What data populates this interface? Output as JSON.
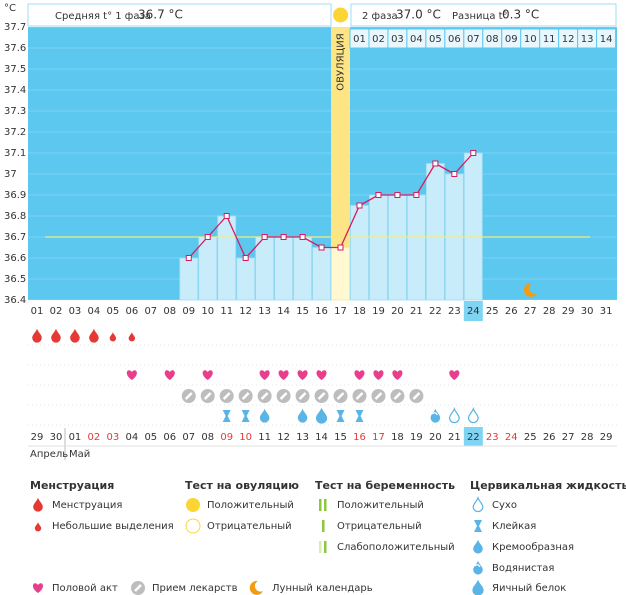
{
  "unit": "°C",
  "header": {
    "phase1_label": "Средняя t° 1 фаза",
    "phase1_value": "36.7 °C",
    "phase2_label": "2 фаза",
    "phase2_value": "37.0 °C",
    "diff_label": "Разница t°",
    "diff_value": "0.3 °C"
  },
  "chart_data": {
    "type": "line",
    "categories": [
      "01",
      "02",
      "03",
      "04",
      "05",
      "06",
      "07",
      "08",
      "09",
      "10",
      "11",
      "12",
      "13",
      "14",
      "15",
      "16",
      "17",
      "18",
      "19",
      "20",
      "21",
      "22",
      "23",
      "24",
      "25",
      "26",
      "27",
      "28",
      "29",
      "30",
      "31"
    ],
    "values": [
      null,
      null,
      null,
      null,
      null,
      null,
      null,
      null,
      36.6,
      36.7,
      36.8,
      36.6,
      36.7,
      36.7,
      36.7,
      36.65,
      36.65,
      36.85,
      36.9,
      36.9,
      36.9,
      37.05,
      37.0,
      37.1,
      null,
      null,
      null,
      null,
      null,
      null,
      null
    ],
    "color": "#d81b60",
    "ylim": [
      36.4,
      37.7
    ],
    "yticks": [
      36.4,
      36.5,
      36.6,
      36.7,
      36.8,
      36.9,
      37,
      37.1,
      37.2,
      37.3,
      37.4,
      37.5,
      37.6,
      37.7
    ],
    "coverline": 36.7,
    "ovulation_day": 17,
    "ovulation_label": "ОВУЛЯЦИЯ",
    "phase2_days": [
      "01",
      "02",
      "03",
      "04",
      "05",
      "06",
      "07",
      "08",
      "09",
      "10",
      "11",
      "12",
      "13",
      "14"
    ],
    "today": 24,
    "markers": {
      "menstruation_heavy": [
        1,
        2,
        3,
        4
      ],
      "menstruation_light": [
        5,
        6
      ],
      "hearts": [
        6,
        8,
        10,
        13,
        14,
        15,
        16,
        18,
        19,
        20,
        23
      ],
      "pills": [
        9,
        10,
        11,
        12,
        13,
        14,
        15,
        16,
        17,
        18,
        19,
        20,
        21
      ],
      "sticky": [
        11,
        12,
        17,
        18
      ],
      "creamy": [
        13,
        15
      ],
      "egg_white": [
        16
      ],
      "watery": [
        22
      ],
      "dry": [
        23,
        24
      ],
      "moon": [
        27
      ]
    },
    "dates": [
      "29",
      "30",
      "01",
      "02",
      "03",
      "04",
      "05",
      "06",
      "07",
      "08",
      "09",
      "10",
      "11",
      "12",
      "13",
      "14",
      "15",
      "16",
      "17",
      "18",
      "19",
      "20",
      "21",
      "22",
      "23",
      "24",
      "25",
      "26",
      "27",
      "28",
      "29"
    ],
    "weekend_days": [
      4,
      5,
      11,
      12,
      18,
      19,
      25,
      26
    ],
    "months": [
      "Апрель",
      "Май"
    ]
  },
  "legend": {
    "groups": [
      {
        "title": "Менструация",
        "items": [
          "Менструация",
          "Небольшие выделения"
        ]
      },
      {
        "title": "Тест на овуляцию",
        "items": [
          "Положительный",
          "Отрицательный"
        ]
      },
      {
        "title": "Тест на беременность",
        "items": [
          "Положительный",
          "Отрицательный",
          "Слабоположительный"
        ]
      },
      {
        "title": "Цервикальная жидкость",
        "items": [
          "Сухо",
          "Клейкая",
          "Кремообразная",
          "Водянистая",
          "Яичный белок"
        ]
      }
    ],
    "extra": [
      "Половой акт",
      "Прием лекарств",
      "Лунный календарь"
    ]
  }
}
